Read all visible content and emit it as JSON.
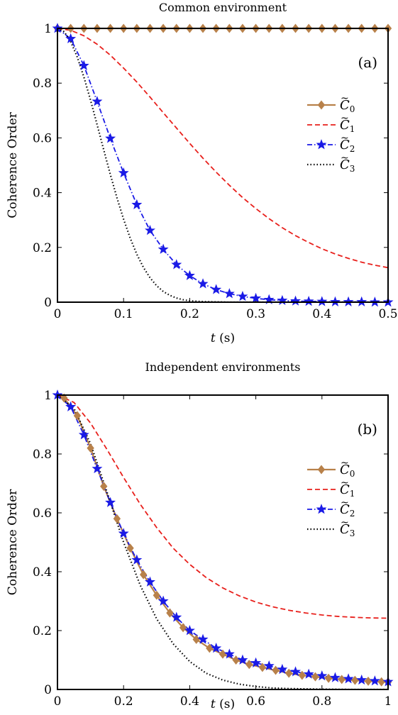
{
  "colors": {
    "C0": "#b8814a",
    "C1": "#e8201c",
    "C2": "#1a1ae6",
    "C3": "#000000"
  },
  "chart_data": [
    {
      "type": "line",
      "title": "Common environment",
      "panel_label": "(a)",
      "xlabel_var": "t",
      "xlabel_unit": "(s)",
      "ylabel": "Coherence Order",
      "xlim": [
        0,
        0.5
      ],
      "ylim": [
        0,
        1
      ],
      "xticks": [
        "0",
        "0.1",
        "0.2",
        "0.3",
        "0.4",
        "0.5"
      ],
      "xtick_values": [
        0,
        0.1,
        0.2,
        0.3,
        0.4,
        0.5
      ],
      "yticks": [
        "0",
        "0.2",
        "0.4",
        "0.6",
        "0.8",
        "1"
      ],
      "ytick_values": [
        0,
        0.2,
        0.4,
        0.6,
        0.8,
        1
      ],
      "legend_position": "right",
      "grid": false,
      "series": [
        {
          "name": "C0",
          "marker": "diamond",
          "style": "solid",
          "x": [
            0,
            0.02,
            0.04,
            0.06,
            0.08,
            0.1,
            0.12,
            0.14,
            0.16,
            0.18,
            0.2,
            0.22,
            0.24,
            0.26,
            0.28,
            0.3,
            0.32,
            0.34,
            0.36,
            0.38,
            0.4,
            0.42,
            0.44,
            0.46,
            0.48,
            0.5
          ],
          "y": [
            1,
            1,
            1,
            1,
            1,
            1,
            1,
            1,
            1,
            1,
            1,
            1,
            1,
            1,
            1,
            1,
            1,
            1,
            1,
            1,
            1,
            1,
            1,
            1,
            1,
            1
          ]
        },
        {
          "name": "C1",
          "marker": "none",
          "style": "dashed",
          "x": [
            0,
            0.02,
            0.04,
            0.06,
            0.08,
            0.1,
            0.12,
            0.14,
            0.16,
            0.18,
            0.2,
            0.22,
            0.24,
            0.26,
            0.28,
            0.3,
            0.32,
            0.34,
            0.36,
            0.38,
            0.4,
            0.42,
            0.44,
            0.46,
            0.48,
            0.5
          ],
          "y": [
            1,
            0.993,
            0.973,
            0.942,
            0.902,
            0.855,
            0.804,
            0.749,
            0.692,
            0.636,
            0.58,
            0.526,
            0.475,
            0.427,
            0.382,
            0.342,
            0.305,
            0.272,
            0.243,
            0.218,
            0.195,
            0.176,
            0.16,
            0.146,
            0.135,
            0.126
          ]
        },
        {
          "name": "C2",
          "marker": "star",
          "style": "dashdot",
          "x": [
            0,
            0.02,
            0.04,
            0.06,
            0.08,
            0.1,
            0.12,
            0.14,
            0.16,
            0.18,
            0.2,
            0.22,
            0.24,
            0.26,
            0.28,
            0.3,
            0.32,
            0.34,
            0.36,
            0.38,
            0.4,
            0.42,
            0.44,
            0.46,
            0.48,
            0.5
          ],
          "y": [
            1,
            0.962,
            0.864,
            0.733,
            0.598,
            0.472,
            0.356,
            0.262,
            0.193,
            0.137,
            0.097,
            0.067,
            0.046,
            0.031,
            0.021,
            0.014,
            0.009,
            0.006,
            0.004,
            0.003,
            0.002,
            0.001,
            0.001,
            0.001,
            0,
            0
          ]
        },
        {
          "name": "C3",
          "marker": "none",
          "style": "dotted",
          "x": [
            0,
            0.01,
            0.02,
            0.03,
            0.04,
            0.05,
            0.06,
            0.07,
            0.08,
            0.09,
            0.1,
            0.11,
            0.12,
            0.13,
            0.14,
            0.15,
            0.16,
            0.17,
            0.18,
            0.19,
            0.2,
            0.22,
            0.24,
            0.26,
            0.3,
            0.5
          ],
          "y": [
            1,
            0.988,
            0.952,
            0.895,
            0.822,
            0.738,
            0.648,
            0.556,
            0.466,
            0.381,
            0.303,
            0.234,
            0.175,
            0.127,
            0.089,
            0.06,
            0.039,
            0.025,
            0.015,
            0.009,
            0.005,
            0.002,
            0.001,
            0,
            0,
            0
          ]
        }
      ]
    },
    {
      "type": "line",
      "title": "Independent environments",
      "panel_label": "(b)",
      "xlabel_var": "t",
      "xlabel_unit": "(s)",
      "ylabel": "Coherence Order",
      "xlim": [
        0,
        1
      ],
      "ylim": [
        0,
        1
      ],
      "xticks": [
        "0",
        "0.2",
        "0.4",
        "0.6",
        "0.8",
        "1"
      ],
      "xtick_values": [
        0,
        0.2,
        0.4,
        0.6,
        0.8,
        1
      ],
      "yticks": [
        "0",
        "0.2",
        "0.4",
        "0.6",
        "0.8",
        "1"
      ],
      "ytick_values": [
        0,
        0.2,
        0.4,
        0.6,
        0.8,
        1
      ],
      "legend_position": "right",
      "grid": false,
      "series": [
        {
          "name": "C0",
          "marker": "diamond",
          "style": "solid",
          "x": [
            0.02,
            0.06,
            0.1,
            0.14,
            0.18,
            0.22,
            0.26,
            0.3,
            0.34,
            0.38,
            0.42,
            0.46,
            0.5,
            0.54,
            0.58,
            0.62,
            0.66,
            0.7,
            0.74,
            0.78,
            0.82,
            0.86,
            0.9,
            0.94,
            0.98,
            1.0
          ],
          "y": [
            0.99,
            0.93,
            0.82,
            0.69,
            0.58,
            0.48,
            0.39,
            0.32,
            0.26,
            0.21,
            0.17,
            0.14,
            0.12,
            0.1,
            0.085,
            0.075,
            0.065,
            0.055,
            0.048,
            0.043,
            0.038,
            0.034,
            0.031,
            0.028,
            0.026,
            0.025
          ]
        },
        {
          "name": "C1",
          "marker": "none",
          "style": "dashed",
          "x": [
            0,
            0.05,
            0.1,
            0.15,
            0.2,
            0.25,
            0.3,
            0.35,
            0.4,
            0.45,
            0.5,
            0.55,
            0.6,
            0.65,
            0.7,
            0.75,
            0.8,
            0.85,
            0.9,
            0.95,
            1.0
          ],
          "y": [
            1,
            0.975,
            0.905,
            0.815,
            0.72,
            0.63,
            0.55,
            0.48,
            0.425,
            0.38,
            0.345,
            0.318,
            0.297,
            0.281,
            0.269,
            0.26,
            0.253,
            0.248,
            0.245,
            0.243,
            0.242
          ]
        },
        {
          "name": "C2",
          "marker": "star",
          "style": "dashdot",
          "x": [
            0,
            0.04,
            0.08,
            0.12,
            0.16,
            0.2,
            0.24,
            0.28,
            0.32,
            0.36,
            0.4,
            0.44,
            0.48,
            0.52,
            0.56,
            0.6,
            0.64,
            0.68,
            0.72,
            0.76,
            0.8,
            0.84,
            0.88,
            0.92,
            0.96,
            1.0
          ],
          "y": [
            1,
            0.96,
            0.865,
            0.75,
            0.635,
            0.53,
            0.44,
            0.365,
            0.3,
            0.245,
            0.2,
            0.17,
            0.14,
            0.12,
            0.1,
            0.09,
            0.08,
            0.068,
            0.06,
            0.052,
            0.046,
            0.04,
            0.036,
            0.032,
            0.029,
            0.026
          ]
        },
        {
          "name": "C3",
          "marker": "none",
          "style": "dotted",
          "x": [
            0,
            0.05,
            0.1,
            0.15,
            0.2,
            0.25,
            0.3,
            0.35,
            0.4,
            0.45,
            0.5,
            0.55,
            0.6,
            0.65,
            0.7,
            0.8,
            0.9,
            1.0
          ],
          "y": [
            1,
            0.955,
            0.835,
            0.67,
            0.5,
            0.355,
            0.24,
            0.155,
            0.095,
            0.055,
            0.032,
            0.018,
            0.01,
            0.005,
            0.003,
            0.001,
            0,
            0
          ]
        }
      ]
    }
  ]
}
